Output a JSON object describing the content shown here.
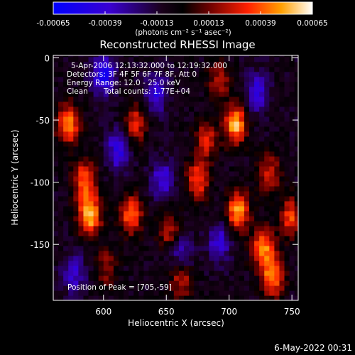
{
  "colorbar": {
    "ticks": [
      "-0.00065",
      "-0.00039",
      "-0.00013",
      "0.00013",
      "0.00039",
      "0.00065"
    ],
    "values": [
      -0.00065,
      -0.00039,
      -0.00013,
      0.00013,
      0.00039,
      0.00065
    ],
    "range": [
      -0.00065,
      0.00065
    ],
    "units": "(photons cm⁻² s⁻¹ asec⁻²)",
    "colors": [
      "#0000ff",
      "#3a00d0",
      "#1a001a",
      "#000000",
      "#6a0000",
      "#ff2000",
      "#ffa000",
      "#ffffff"
    ]
  },
  "title": "Reconstructed RHESSI Image",
  "info": {
    "time": "5-Apr-2006 12:13:32.000 to 12:19:32.000",
    "detectors": "Detectors: 3F 4F 5F 6F 7F 8F, Att 0",
    "energy": "Energy Range: 12.0 - 25.0 keV",
    "method": "Clean",
    "counts": "Total counts: 1.77E+04",
    "peak": "Position of Peak = [705,-59]"
  },
  "footer_date": "6-May-2022 00:31",
  "chart_data": {
    "type": "heatmap",
    "title": "Reconstructed RHESSI Image",
    "xlabel": "Heliocentric X (arcsec)",
    "ylabel": "Heliocentric Y (arcsec)",
    "xlim": [
      560,
      755
    ],
    "ylim": [
      -195,
      2
    ],
    "xticks": [
      600,
      650,
      700,
      750
    ],
    "yticks": [
      0,
      -50,
      -100,
      -150
    ],
    "value_range": [
      -0.00065,
      0.00065
    ],
    "peak": [
      705,
      -59
    ],
    "bright_regions": [
      {
        "x": 587,
        "y": -128,
        "level": 1.0
      },
      {
        "x": 570,
        "y": -55,
        "level": 0.85
      },
      {
        "x": 583,
        "y": -100,
        "level": 0.75
      },
      {
        "x": 623,
        "y": -55,
        "level": 0.6
      },
      {
        "x": 620,
        "y": -128,
        "level": 0.75
      },
      {
        "x": 673,
        "y": -100,
        "level": 0.7
      },
      {
        "x": 680,
        "y": -67,
        "level": 0.55
      },
      {
        "x": 703,
        "y": -55,
        "level": 0.95
      },
      {
        "x": 705,
        "y": -125,
        "level": 0.9
      },
      {
        "x": 725,
        "y": -155,
        "level": 0.8
      },
      {
        "x": 733,
        "y": -178,
        "level": 0.8
      },
      {
        "x": 747,
        "y": -130,
        "level": 0.65
      },
      {
        "x": 650,
        "y": -140,
        "level": 0.5
      },
      {
        "x": 660,
        "y": -180,
        "level": 0.55
      },
      {
        "x": 730,
        "y": -95,
        "level": 0.55
      },
      {
        "x": 600,
        "y": -170,
        "level": 0.4
      },
      {
        "x": 690,
        "y": -20,
        "level": 0.45
      }
    ],
    "dark_regions": [
      {
        "x": 598,
        "y": -15,
        "level": -0.7
      },
      {
        "x": 610,
        "y": -75,
        "level": -0.6
      },
      {
        "x": 640,
        "y": -30,
        "level": -0.55
      },
      {
        "x": 645,
        "y": -100,
        "level": -0.5
      },
      {
        "x": 690,
        "y": -150,
        "level": -0.5
      },
      {
        "x": 720,
        "y": -30,
        "level": -0.55
      },
      {
        "x": 575,
        "y": -175,
        "level": -0.45
      },
      {
        "x": 660,
        "y": -160,
        "level": -0.45
      }
    ]
  }
}
